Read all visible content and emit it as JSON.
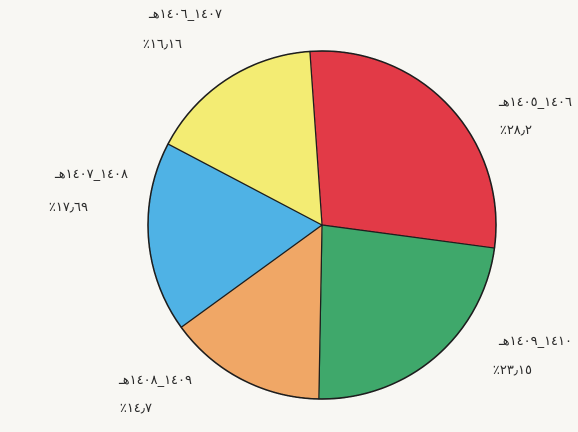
{
  "chart_data": {
    "type": "pie",
    "title": "",
    "start_angle_deg": -4,
    "direction": "clockwise",
    "slices": [
      {
        "label": "١٤٠٦_١٤٠٥هـ",
        "percent_text": "٪٢٨٫٢",
        "value": 28.2,
        "color": "#e23a47"
      },
      {
        "label": "١٤١٠_١٤٠٩هـ",
        "percent_text": "٪٢٣٫١٥",
        "value": 23.15,
        "color": "#3fa86b"
      },
      {
        "label": "١٤٠٩_١٤٠٨هـ",
        "percent_text": "٪١٤٫٧",
        "value": 14.7,
        "color": "#f0a766"
      },
      {
        "label": "١٤٠٨_١٤٠٧هـ",
        "percent_text": "٪١٧٫٦٩",
        "value": 17.69,
        "color": "#4fb2e5"
      },
      {
        "label": "١٤٠٧_١٤٠٦هـ",
        "percent_text": "٪١٦٫١٦",
        "value": 16.16,
        "color": "#f3ec73"
      }
    ]
  }
}
